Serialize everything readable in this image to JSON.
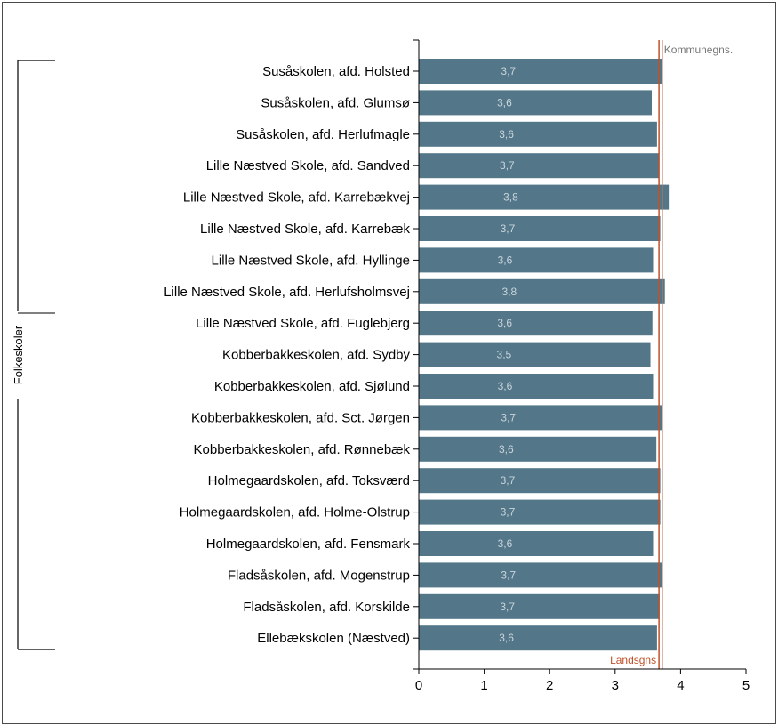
{
  "colors": {
    "bar": "#537789",
    "axis": "#000000",
    "landsgns_line": "#c0522a",
    "kommunegns_line": "#b87d5e",
    "bar_label": "#c9d4dc"
  },
  "chart_data": {
    "type": "bar",
    "orientation": "horizontal",
    "title": "",
    "xlabel": "",
    "ylabel": "",
    "xlim": [
      0,
      5
    ],
    "x_ticks": [
      "0",
      "1",
      "2",
      "3",
      "4",
      "5"
    ],
    "grid": false,
    "group_label": "Folkeskoler",
    "categories": [
      "Susåskolen, afd. Holsted",
      "Susåskolen, afd. Glumsø",
      "Susåskolen,  afd. Herlufmagle",
      "Lille Næstved Skole, afd. Sandved",
      "Lille Næstved Skole, afd. Karrebækvej",
      "Lille Næstved Skole, afd. Karrebæk",
      "Lille Næstved Skole, afd. Hyllinge",
      "Lille Næstved Skole, afd. Herlufsholmsvej",
      "Lille Næstved Skole, afd. Fuglebjerg",
      "Kobberbakkeskolen, afd. Sydby",
      "Kobberbakkeskolen, afd. Sjølund",
      "Kobberbakkeskolen, afd. Sct. Jørgen",
      "Kobberbakkeskolen, afd. Rønnebæk",
      "Holmegaardskolen, afd. Toksværd",
      "Holmegaardskolen, afd. Holme-Olstrup",
      "Holmegaardskolen, afd. Fensmark",
      "Fladsåskolen, afd. Mogenstrup",
      "Fladsåskolen, afd. Korskilde",
      "Ellebækskolen (Næstved)"
    ],
    "values": [
      3.72,
      3.56,
      3.64,
      3.67,
      3.82,
      3.69,
      3.58,
      3.76,
      3.57,
      3.54,
      3.58,
      3.72,
      3.63,
      3.69,
      3.69,
      3.58,
      3.72,
      3.68,
      3.64
    ],
    "value_labels": [
      "3,7",
      "3,6",
      "3,6",
      "3,7",
      "3,8",
      "3,7",
      "3,6",
      "3,8",
      "3,6",
      "3,5",
      "3,6",
      "3,7",
      "3,6",
      "3,7",
      "3,7",
      "3,6",
      "3,7",
      "3,7",
      "3,6"
    ],
    "reference_lines": [
      {
        "name": "Landsgns",
        "value": 3.67,
        "label_position": "bottom"
      },
      {
        "name": "Kommunegns.",
        "value": 3.72,
        "label_position": "top"
      }
    ]
  }
}
